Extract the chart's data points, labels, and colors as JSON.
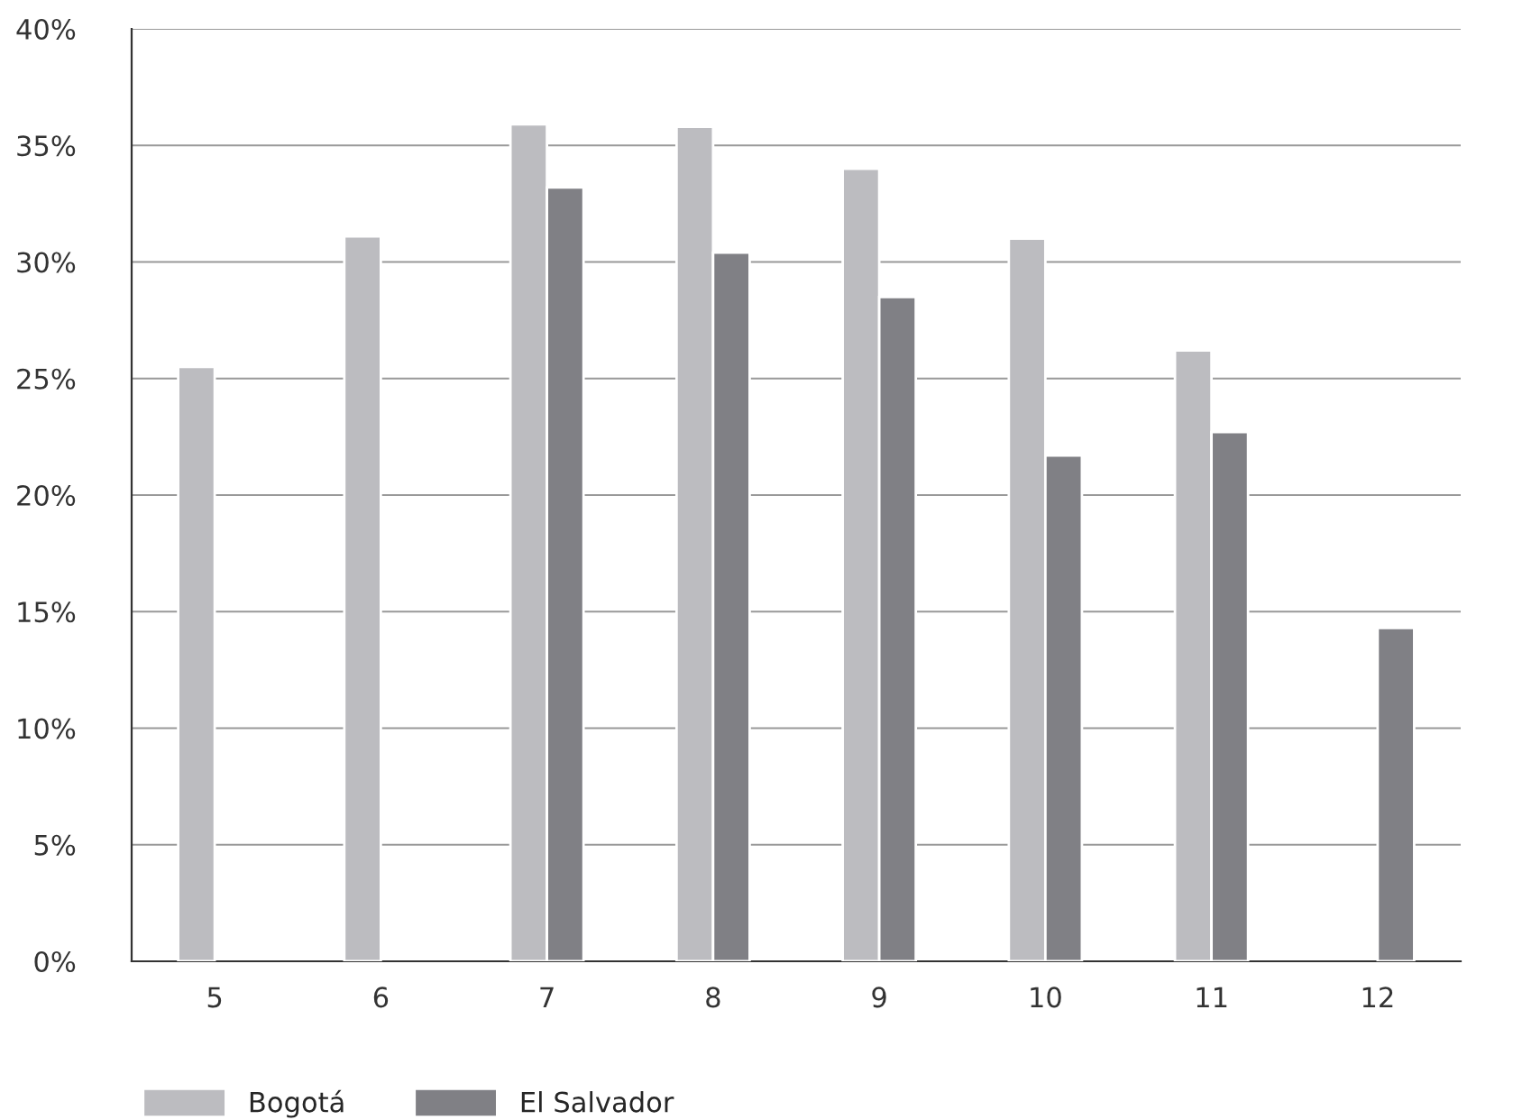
{
  "chart_data": {
    "type": "bar",
    "categories": [
      "5",
      "6",
      "7",
      "8",
      "9",
      "10",
      "11",
      "12"
    ],
    "series": [
      {
        "name": "Bogotá",
        "color": "#bcbcc0",
        "values": [
          25.5,
          31.1,
          35.9,
          35.8,
          34.0,
          31.0,
          26.2,
          null
        ]
      },
      {
        "name": "El Salvador",
        "color": "#808085",
        "values": [
          null,
          null,
          33.2,
          30.4,
          28.5,
          21.7,
          22.7,
          14.3
        ]
      }
    ],
    "ylim": [
      0,
      40
    ],
    "yticks": [
      {
        "value": 0,
        "label": "0%"
      },
      {
        "value": 5,
        "label": "5%"
      },
      {
        "value": 10,
        "label": "10%"
      },
      {
        "value": 15,
        "label": "15%"
      },
      {
        "value": 20,
        "label": "20%"
      },
      {
        "value": 25,
        "label": "25%"
      },
      {
        "value": 30,
        "label": "30%"
      },
      {
        "value": 35,
        "label": "35%"
      },
      {
        "value": 40,
        "label": "40%"
      }
    ],
    "grid": "y",
    "legend": "bottom left"
  }
}
